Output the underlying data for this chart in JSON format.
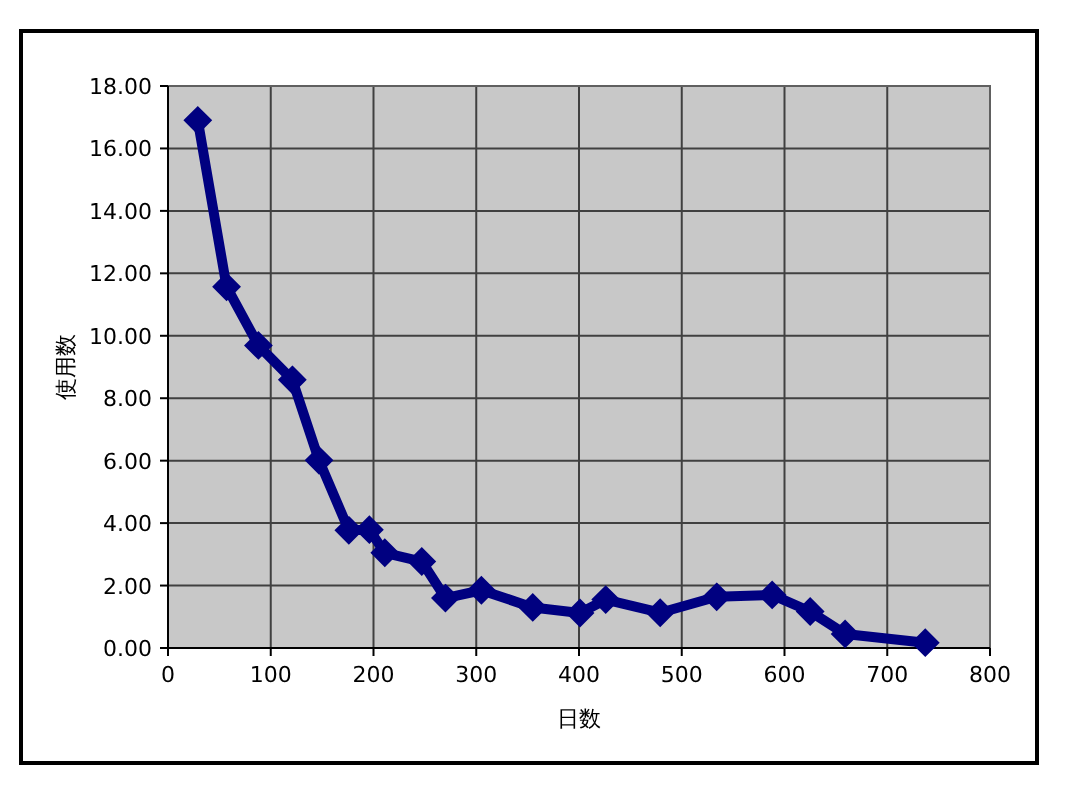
{
  "chart_data": {
    "type": "line",
    "xlabel": "日数",
    "ylabel": "使用数",
    "x": [
      29,
      57,
      88,
      121,
      147,
      176,
      196,
      211,
      247,
      270,
      305,
      355,
      401,
      426,
      479,
      534,
      588,
      625,
      659,
      737
    ],
    "values": [
      16.9,
      11.57,
      9.69,
      8.59,
      6.01,
      3.77,
      3.79,
      3.05,
      2.77,
      1.6,
      1.85,
      1.3,
      1.12,
      1.55,
      1.13,
      1.64,
      1.7,
      1.17,
      0.45,
      0.17
    ],
    "color": "#000080",
    "marker": "diamond",
    "grid": true,
    "xlim": [
      0,
      800
    ],
    "ylim": [
      0,
      18
    ],
    "xticks": [
      0,
      100,
      200,
      300,
      400,
      500,
      600,
      700,
      800
    ],
    "yticks": [
      {
        "value": 0,
        "label": "0.00"
      },
      {
        "value": 2,
        "label": "2.00"
      },
      {
        "value": 4,
        "label": "4.00"
      },
      {
        "value": 6,
        "label": "6.00"
      },
      {
        "value": 8,
        "label": "8.00"
      },
      {
        "value": 10,
        "label": "10.00"
      },
      {
        "value": 12,
        "label": "12.00"
      },
      {
        "value": 14,
        "label": "14.00"
      },
      {
        "value": 16,
        "label": "16.00"
      },
      {
        "value": 18,
        "label": "18.00"
      }
    ]
  }
}
